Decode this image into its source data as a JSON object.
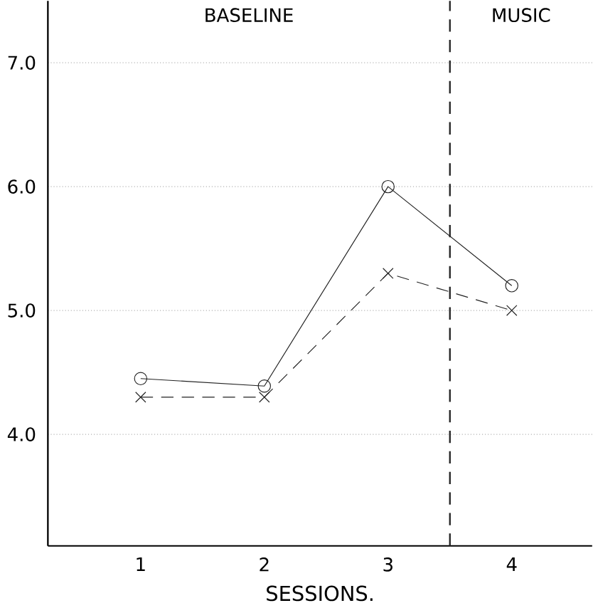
{
  "chart_data": {
    "type": "line",
    "xlabel": "SESSIONS.",
    "x": [
      1,
      2,
      3,
      4
    ],
    "xlim": [
      0.25,
      4.65
    ],
    "xticks": [
      1,
      2,
      3,
      4
    ],
    "ylim": [
      3.1,
      7.5
    ],
    "yticks": [
      {
        "value": 4,
        "label": "4.0"
      },
      {
        "value": 5,
        "label": "5.0"
      },
      {
        "value": 6,
        "label": "6.0"
      },
      {
        "value": 7,
        "label": "7.0"
      }
    ],
    "grid": "y",
    "series": [
      {
        "color": "#222222",
        "values": [
          4.45,
          4.39,
          6.0,
          5.2
        ],
        "marker": "circle",
        "line_style": "solid"
      },
      {
        "color": "#222222",
        "values": [
          4.3,
          4.3,
          5.3,
          5.0
        ],
        "marker": "cross",
        "line_style": "dashed"
      }
    ],
    "ref_lines": [
      {
        "axis": "x",
        "value": 3.5,
        "line_style": "dashed",
        "color": "#222222"
      }
    ],
    "annotations": [
      "BASELINE",
      "MUSIC"
    ]
  }
}
